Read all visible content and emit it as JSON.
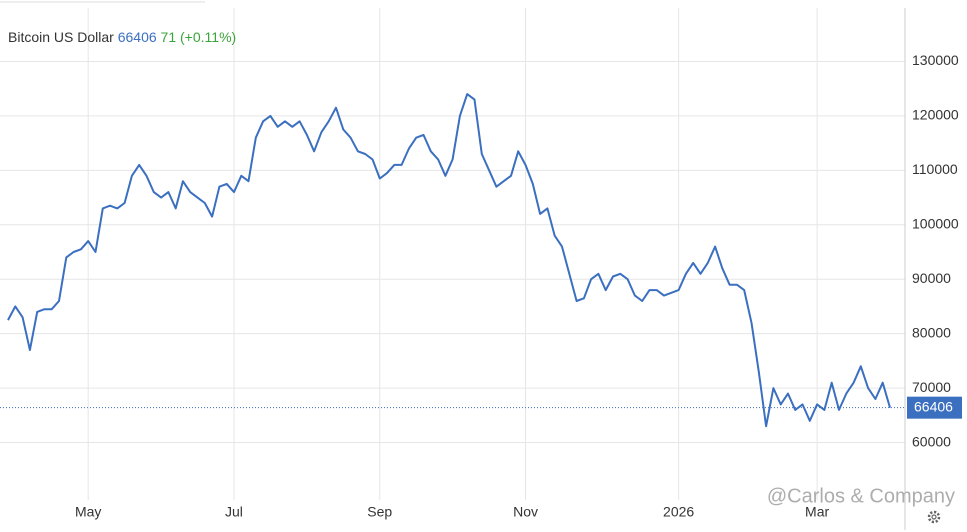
{
  "header": {
    "name": "Bitcoin US Dollar",
    "price": "66406",
    "change": "71",
    "change_pct": "(+0.11%)"
  },
  "watermark": "@Carlos & Company",
  "chart_data": {
    "type": "line",
    "categories": [
      null,
      null,
      null,
      null,
      null,
      null,
      null,
      null,
      null,
      null,
      null,
      "May",
      null,
      null,
      null,
      null,
      null,
      null,
      null,
      null,
      null,
      null,
      null,
      null,
      null,
      null,
      null,
      null,
      null,
      null,
      null,
      "Jul",
      null,
      null,
      null,
      null,
      null,
      null,
      null,
      null,
      null,
      null,
      null,
      null,
      null,
      null,
      null,
      null,
      null,
      null,
      null,
      "Sep",
      null,
      null,
      null,
      null,
      null,
      null,
      null,
      null,
      null,
      null,
      null,
      null,
      null,
      null,
      null,
      null,
      null,
      null,
      null,
      "Nov",
      null,
      null,
      null,
      null,
      null,
      null,
      null,
      null,
      null,
      null,
      null,
      null,
      null,
      null,
      null,
      null,
      null,
      null,
      null,
      null,
      "2026",
      null,
      null,
      null,
      null,
      null,
      null,
      null,
      null,
      null,
      null,
      null,
      null,
      null,
      null,
      null,
      null,
      null,
      null,
      "Mar",
      null,
      null,
      null,
      null,
      null,
      null,
      null,
      null,
      null,
      null
    ],
    "series": [
      {
        "name": "Bitcoin US Dollar",
        "color": "#3b6fc0",
        "values": [
          82500,
          85000,
          83000,
          77000,
          84000,
          84500,
          84500,
          86000,
          94000,
          95000,
          95500,
          97000,
          95000,
          103000,
          103500,
          103000,
          104000,
          109000,
          111000,
          109000,
          106000,
          105000,
          106000,
          103000,
          108000,
          106000,
          105000,
          104000,
          101500,
          107000,
          107500,
          106000,
          109000,
          108000,
          116000,
          119000,
          120000,
          118000,
          119000,
          118000,
          119000,
          116500,
          113500,
          117000,
          119000,
          121500,
          117500,
          116000,
          113500,
          113000,
          112000,
          108500,
          109500,
          111000,
          111000,
          114000,
          116000,
          116500,
          113500,
          112000,
          109000,
          112000,
          120000,
          124000,
          123000,
          113000,
          110000,
          107000,
          108000,
          109000,
          113500,
          111000,
          107500,
          102000,
          103000,
          98000,
          96000,
          91000,
          86000,
          86500,
          90000,
          91000,
          88000,
          90500,
          91000,
          90000,
          87000,
          86000,
          88000,
          88000,
          87000,
          87500,
          88000,
          91000,
          93000,
          91000,
          93000,
          96000,
          92000,
          89000,
          89000,
          88000,
          82000,
          73000,
          63000,
          70000,
          67000,
          69000,
          66000,
          67000,
          64000,
          67000,
          66000,
          71000,
          66000,
          69000,
          71000,
          74000,
          70000,
          68000,
          71000,
          66406
        ]
      }
    ],
    "ylim": [
      50000,
      140000
    ],
    "yticks": [
      60000,
      70000,
      80000,
      90000,
      100000,
      110000,
      120000,
      130000
    ],
    "grid": true
  }
}
